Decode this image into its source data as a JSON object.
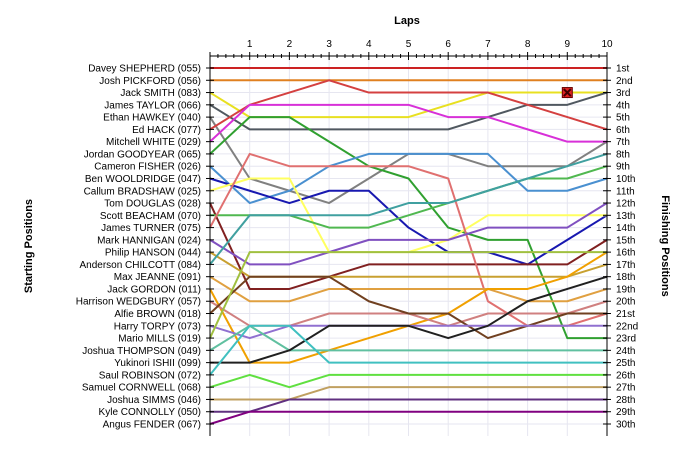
{
  "chart_data": {
    "type": "line",
    "title": "",
    "xlabel": "Laps",
    "ylabel_left": "Starting Positions",
    "ylabel_right": "Finishing Positions",
    "laps": [
      "1",
      "2",
      "3",
      "4",
      "5",
      "6",
      "7",
      "8",
      "9",
      "10"
    ],
    "position_labels": [
      "1st",
      "2nd",
      "3rd",
      "4th",
      "5th",
      "6th",
      "7th",
      "8th",
      "9th",
      "10th",
      "11th",
      "12th",
      "13th",
      "14th",
      "15th",
      "16th",
      "17th",
      "18th",
      "19th",
      "20th",
      "21st",
      "22nd",
      "23rd",
      "24th",
      "25th",
      "26th",
      "27th",
      "28th",
      "29th",
      "30th"
    ],
    "grid": true,
    "series": [
      {
        "name": "Davey SHEPHERD (055)",
        "color": "#cc2222",
        "positions": [
          1,
          1,
          1,
          1,
          1,
          1,
          1,
          1,
          1,
          1,
          1
        ]
      },
      {
        "name": "Josh PICKFORD (056)",
        "color": "#e08020",
        "positions": [
          2,
          2,
          2,
          2,
          2,
          2,
          2,
          2,
          2,
          2,
          2
        ]
      },
      {
        "name": "Jack SMITH (083)",
        "color": "#e8e020",
        "positions": [
          3,
          5,
          5,
          5,
          5,
          5,
          4,
          3,
          3,
          3,
          3
        ],
        "retired_lap": 9
      },
      {
        "name": "James TAYLOR (066)",
        "color": "#505860",
        "positions": [
          4,
          6,
          6,
          6,
          6,
          6,
          6,
          5,
          4,
          4,
          3
        ]
      },
      {
        "name": "Ethan HAWKEY (040)",
        "color": "#808080",
        "positions": [
          5,
          10,
          11,
          12,
          10,
          8,
          8,
          9,
          9,
          9,
          7
        ]
      },
      {
        "name": "Ed HACK (077)",
        "color": "#d44040",
        "positions": [
          6,
          4,
          3,
          2,
          3,
          3,
          3,
          3,
          4,
          5,
          6
        ]
      },
      {
        "name": "Mitchell WHITE (029)",
        "color": "#d830d8",
        "positions": [
          7,
          4,
          4,
          4,
          4,
          4,
          5,
          5,
          6,
          7,
          7
        ]
      },
      {
        "name": "Jordan GOODYEAR (065)",
        "color": "#30a030",
        "positions": [
          8,
          5,
          5,
          7,
          9,
          10,
          14,
          15,
          15,
          23,
          23
        ]
      },
      {
        "name": "Cameron FISHER (026)",
        "color": "#4a90d0",
        "positions": [
          9,
          12,
          11,
          9,
          8,
          8,
          8,
          8,
          11,
          11,
          10
        ]
      },
      {
        "name": "Ben WOOLDRIDGE (047)",
        "color": "#1818b0",
        "positions": [
          10,
          11,
          12,
          11,
          11,
          14,
          16,
          16,
          17,
          15,
          13
        ]
      },
      {
        "name": "Callum BRADSHAW (025)",
        "color": "#ffff60",
        "positions": [
          11,
          10,
          10,
          16,
          16,
          16,
          15,
          13,
          13,
          13,
          13
        ]
      },
      {
        "name": "Tom DOUGLAS (028)",
        "color": "#802020",
        "positions": [
          12,
          19,
          19,
          18,
          17,
          17,
          17,
          17,
          17,
          17,
          15
        ]
      },
      {
        "name": "Scott BEACHAM (070)",
        "color": "#50b850",
        "positions": [
          13,
          13,
          13,
          14,
          14,
          13,
          12,
          11,
          10,
          10,
          9
        ]
      },
      {
        "name": "James TURNER (075)",
        "color": "#e07070",
        "positions": [
          14,
          8,
          9,
          9,
          9,
          9,
          10,
          20,
          22,
          22,
          21
        ]
      },
      {
        "name": "Mark HANNIGAN (024)",
        "color": "#8050c0",
        "positions": [
          15,
          17,
          17,
          16,
          15,
          15,
          15,
          14,
          14,
          14,
          12
        ]
      },
      {
        "name": "Philip HANSON (044)",
        "color": "#c8a030",
        "positions": [
          16,
          18,
          18,
          18,
          18,
          18,
          18,
          18,
          18,
          18,
          17
        ]
      },
      {
        "name": "Anderson CHILCOTT (084)",
        "color": "#40a0a0",
        "positions": [
          17,
          13,
          13,
          13,
          13,
          12,
          12,
          11,
          10,
          9,
          8
        ]
      },
      {
        "name": "Max JEANNE (091)",
        "color": "#e0a040",
        "positions": [
          18,
          20,
          20,
          19,
          19,
          19,
          19,
          19,
          20,
          20,
          19
        ]
      },
      {
        "name": "Jack GORDON (011)",
        "color": "#f0a000",
        "positions": [
          19,
          25,
          25,
          24,
          23,
          22,
          21,
          19,
          19,
          18,
          16
        ]
      },
      {
        "name": "Harrison WEDGBURY (057)",
        "color": "#d08080",
        "positions": [
          20,
          22,
          22,
          21,
          21,
          21,
          22,
          21,
          21,
          21,
          20
        ]
      },
      {
        "name": "Alfie BROWN (018)",
        "color": "#704020",
        "positions": [
          21,
          18,
          18,
          18,
          20,
          21,
          21,
          23,
          22,
          21,
          21
        ]
      },
      {
        "name": "Harry TORPY (073)",
        "color": "#9070d0",
        "positions": [
          22,
          23,
          22,
          22,
          22,
          22,
          22,
          22,
          22,
          22,
          22
        ]
      },
      {
        "name": "Mario MILLS (019)",
        "color": "#a0c040",
        "positions": [
          23,
          16,
          16,
          16,
          16,
          16,
          16,
          16,
          16,
          16,
          16
        ]
      },
      {
        "name": "Joshua THOMPSON (049)",
        "color": "#60c0a0",
        "positions": [
          24,
          22,
          24,
          24,
          24,
          24,
          24,
          24,
          24,
          24,
          24
        ]
      },
      {
        "name": "Yukinori ISHII (099)",
        "color": "#202020",
        "positions": [
          25,
          25,
          24,
          22,
          22,
          22,
          23,
          22,
          20,
          19,
          18
        ]
      },
      {
        "name": "Saul ROBINSON (072)",
        "color": "#40c0c0",
        "positions": [
          26,
          22,
          22,
          25,
          25,
          25,
          25,
          25,
          25,
          25,
          25
        ]
      },
      {
        "name": "Samuel CORNWELL (068)",
        "color": "#60e040",
        "positions": [
          27,
          26,
          27,
          26,
          26,
          26,
          26,
          26,
          26,
          26,
          26
        ]
      },
      {
        "name": "Joshua SIMMS (046)",
        "color": "#c0a060",
        "positions": [
          28,
          28,
          28,
          27,
          27,
          27,
          27,
          27,
          27,
          27,
          27
        ]
      },
      {
        "name": "Kyle CONNOLLY (050)",
        "color": "#603080",
        "positions": [
          29,
          29,
          28,
          28,
          28,
          28,
          28,
          28,
          28,
          28,
          28
        ]
      },
      {
        "name": "Angus FENDER (067)",
        "color": "#800080",
        "positions": [
          30,
          29,
          29,
          29,
          29,
          29,
          29,
          29,
          29,
          29,
          29
        ]
      }
    ]
  }
}
